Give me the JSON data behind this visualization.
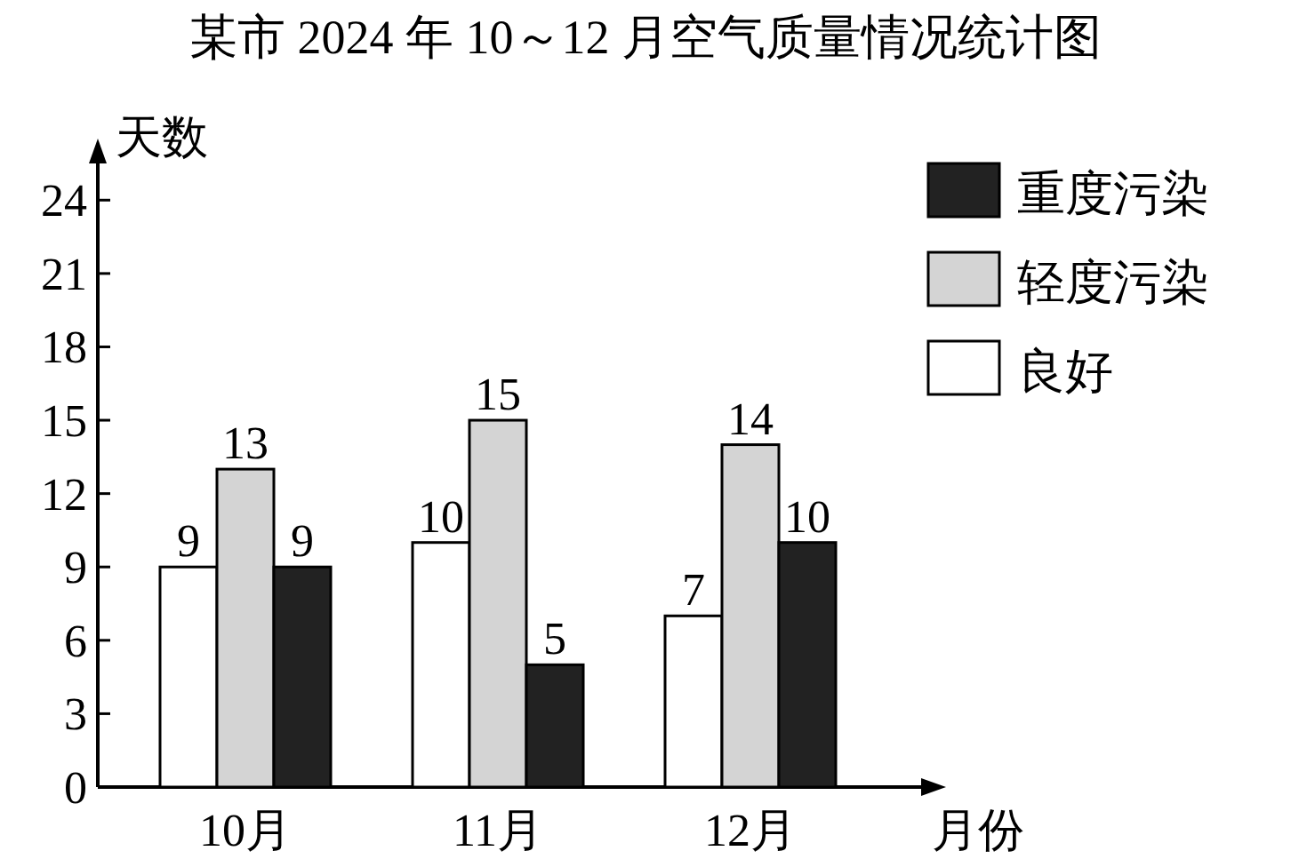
{
  "chart_data": {
    "type": "bar",
    "title": "某市 2024 年 10～12 月空气质量情况统计图",
    "xlabel": "月份",
    "ylabel": "天数",
    "categories": [
      "10月",
      "11月",
      "12月"
    ],
    "series": [
      {
        "name": "良好",
        "color": "#ffffff",
        "values": [
          9,
          10,
          7
        ]
      },
      {
        "name": "轻度污染",
        "color": "#d4d4d4",
        "values": [
          13,
          15,
          14
        ]
      },
      {
        "name": "重度污染",
        "color": "#222222",
        "values": [
          9,
          5,
          10
        ]
      }
    ],
    "ylim": [
      0,
      25.5
    ],
    "yticks": [
      0,
      3,
      6,
      9,
      12,
      15,
      18,
      21,
      24
    ],
    "data_labels": true,
    "legend": "top right"
  }
}
